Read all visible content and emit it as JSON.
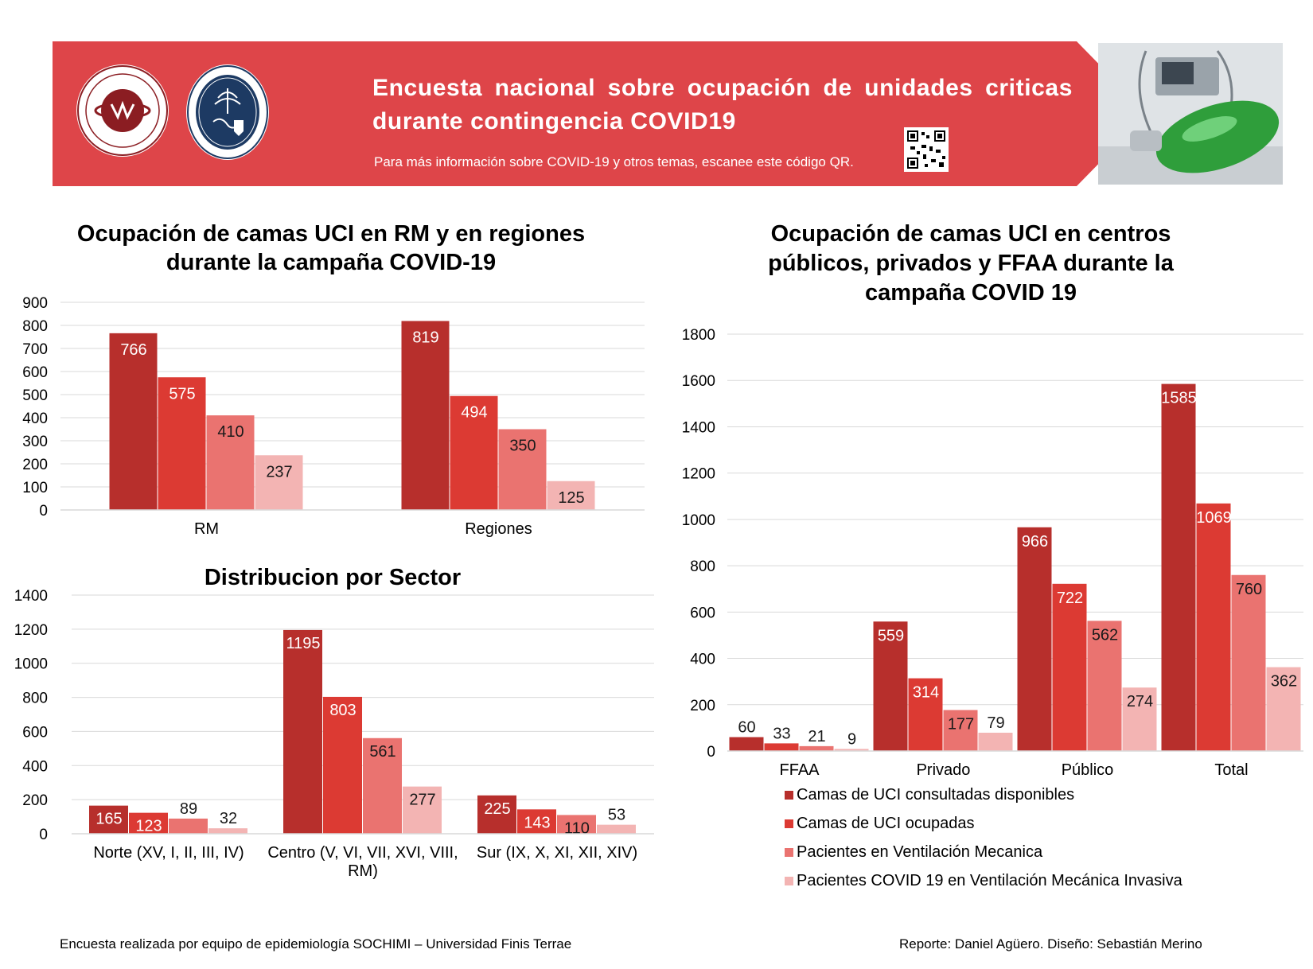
{
  "header": {
    "title": "Encuesta nacional sobre ocupación de unidades criticas durante contingencia COVID19",
    "subtitle": "Para más información sobre COVID-19 y otros temas, escanee este código QR.",
    "logo1_text": "SOCIEDAD CHILENA DE MEDICINA INTENSIVA",
    "logo2_text": "UNIVERSIDAD FINIS TERRAE · VINCE IN BONO MALUM",
    "brand_color": "#de4549"
  },
  "colors": {
    "series1": "#b72f2c",
    "series2": "#dc3a33",
    "series3": "#ea7370",
    "series4": "#f3b4b3"
  },
  "chart_data": [
    {
      "id": "rm",
      "type": "bar",
      "title": "Ocupación de camas UCI en RM y en regiones durante la campaña COVID-19",
      "categories": [
        "RM",
        "Regiones"
      ],
      "ylim": [
        0,
        900
      ],
      "yticks": [
        0,
        100,
        200,
        300,
        400,
        500,
        600,
        700,
        800,
        900
      ],
      "series": [
        {
          "name": "Camas de UCI consultadas disponibles",
          "values": [
            766,
            819
          ]
        },
        {
          "name": "Camas de UCI ocupadas",
          "values": [
            575,
            494
          ]
        },
        {
          "name": "Pacientes en Ventilación Mecanica",
          "values": [
            410,
            350
          ]
        },
        {
          "name": "Pacientes COVID 19 en Ventilación Mecánica Invasiva",
          "values": [
            237,
            125
          ]
        }
      ],
      "grid": true
    },
    {
      "id": "sector",
      "type": "bar",
      "title": "Distribucion por Sector",
      "categories": [
        "Norte (XV, I, II, III, IV)",
        "Centro (V, VI, VII, XVI, VIII, RM)",
        "Sur (IX, X, XI, XII, XIV)"
      ],
      "ylim": [
        0,
        1400
      ],
      "yticks": [
        0,
        200,
        400,
        600,
        800,
        1000,
        1200,
        1400
      ],
      "series": [
        {
          "name": "Camas de UCI consultadas disponibles",
          "values": [
            165,
            1195,
            225
          ]
        },
        {
          "name": "Camas de UCI ocupadas",
          "values": [
            123,
            803,
            143
          ]
        },
        {
          "name": "Pacientes en Ventilación Mecanica",
          "values": [
            89,
            561,
            110
          ]
        },
        {
          "name": "Pacientes COVID 19 en Ventilación Mecánica Invasiva",
          "values": [
            32,
            277,
            53
          ]
        }
      ],
      "grid": true
    },
    {
      "id": "centros",
      "type": "bar",
      "title": "Ocupación de camas UCI en centros públicos, privados y FFAA durante la campaña COVID 19",
      "categories": [
        "FFAA",
        "Privado",
        "Público",
        "Total"
      ],
      "ylim": [
        0,
        1800
      ],
      "yticks": [
        0,
        200,
        400,
        600,
        800,
        1000,
        1200,
        1400,
        1600,
        1800
      ],
      "series": [
        {
          "name": "Camas de UCI consultadas disponibles",
          "values": [
            60,
            559,
            966,
            1585
          ]
        },
        {
          "name": "Camas de UCI ocupadas",
          "values": [
            33,
            314,
            722,
            1069
          ]
        },
        {
          "name": "Pacientes en Ventilación Mecanica",
          "values": [
            21,
            177,
            562,
            760
          ]
        },
        {
          "name": "Pacientes COVID 19 en Ventilación Mecánica Invasiva",
          "values": [
            9,
            79,
            274,
            362
          ]
        }
      ],
      "legend": "bottom",
      "grid": true
    }
  ],
  "footer": {
    "left": "Encuesta realizada por equipo de epidemiología SOCHIMI – Universidad Finis Terrae",
    "right": "Reporte: Daniel Agüero. Diseño: Sebastián Merino"
  }
}
